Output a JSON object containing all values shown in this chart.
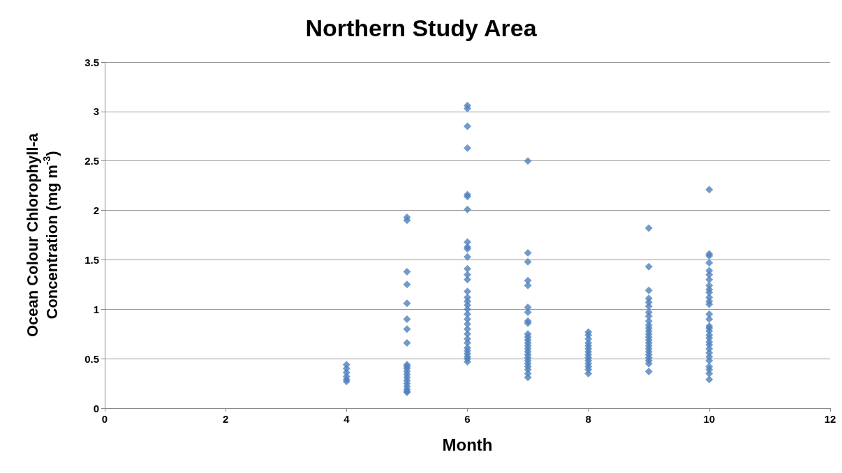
{
  "chart_data": {
    "type": "scatter",
    "title": "Northern Study Area",
    "xlabel": "Month",
    "ylabel": "Ocean Colour Chlorophyll-a Concentration (mg m$^{-3}$)",
    "xlim": [
      0,
      12
    ],
    "xticks": [
      0,
      2,
      4,
      6,
      8,
      10,
      12
    ],
    "ylim": [
      0,
      3.5
    ],
    "yticks": [
      0,
      0.5,
      1,
      1.5,
      2,
      2.5,
      3,
      3.5
    ],
    "grid": "y",
    "marker": "diamond",
    "series": [
      {
        "color": "#4f81bd",
        "x": [
          4,
          4,
          4,
          4,
          4,
          4,
          5,
          5,
          5,
          5,
          5,
          5,
          5,
          5,
          5,
          5,
          5,
          5,
          5,
          5,
          5,
          5,
          5,
          5,
          5,
          5,
          6,
          6,
          6,
          6,
          6,
          6,
          6,
          6,
          6,
          6,
          6,
          6,
          6,
          6,
          6,
          6,
          6,
          6,
          6,
          6,
          6,
          6,
          6,
          6,
          6,
          6,
          6,
          6,
          6,
          6,
          6,
          6,
          7,
          7,
          7,
          7,
          7,
          7,
          7,
          7,
          7,
          7,
          7,
          7,
          7,
          7,
          7,
          7,
          7,
          7,
          7,
          7,
          7,
          7,
          7,
          7,
          8,
          8,
          8,
          8,
          8,
          8,
          8,
          8,
          8,
          8,
          8,
          8,
          8,
          8,
          9,
          9,
          9,
          9,
          9,
          9,
          9,
          9,
          9,
          9,
          9,
          9,
          9,
          9,
          9,
          9,
          9,
          9,
          9,
          9,
          9,
          9,
          9,
          9,
          10,
          10,
          10,
          10,
          10,
          10,
          10,
          10,
          10,
          10,
          10,
          10,
          10,
          10,
          10,
          10,
          10,
          10,
          10,
          10,
          10,
          10,
          10,
          10,
          10,
          10,
          10,
          10,
          10,
          10
        ],
        "values": [
          0.44,
          0.4,
          0.36,
          0.32,
          0.29,
          0.27,
          1.93,
          1.9,
          1.38,
          1.25,
          1.06,
          0.9,
          0.8,
          0.66,
          0.44,
          0.42,
          0.4,
          0.37,
          0.34,
          0.31,
          0.28,
          0.25,
          0.22,
          0.19,
          0.17,
          0.16,
          3.06,
          3.03,
          2.85,
          2.63,
          2.16,
          2.14,
          2.01,
          1.68,
          1.63,
          1.61,
          1.53,
          1.41,
          1.35,
          1.3,
          1.18,
          1.12,
          1.08,
          1.04,
          1.0,
          0.95,
          0.9,
          0.85,
          0.8,
          0.75,
          0.7,
          0.66,
          0.61,
          0.58,
          0.55,
          0.52,
          0.5,
          0.47,
          2.5,
          1.57,
          1.48,
          1.29,
          1.24,
          1.02,
          0.97,
          0.88,
          0.86,
          0.75,
          0.72,
          0.69,
          0.66,
          0.63,
          0.6,
          0.57,
          0.54,
          0.51,
          0.48,
          0.45,
          0.42,
          0.39,
          0.35,
          0.31,
          0.77,
          0.74,
          0.7,
          0.66,
          0.63,
          0.6,
          0.57,
          0.54,
          0.51,
          0.48,
          0.45,
          0.42,
          0.39,
          0.35,
          1.82,
          1.43,
          1.19,
          1.11,
          1.07,
          1.03,
          0.97,
          0.93,
          0.88,
          0.84,
          0.81,
          0.78,
          0.75,
          0.72,
          0.69,
          0.66,
          0.63,
          0.6,
          0.57,
          0.54,
          0.51,
          0.48,
          0.45,
          0.37,
          2.21,
          1.56,
          1.54,
          1.47,
          1.39,
          1.35,
          1.3,
          1.24,
          1.2,
          1.17,
          1.12,
          1.08,
          1.05,
          0.95,
          0.9,
          0.83,
          0.81,
          0.78,
          0.74,
          0.71,
          0.67,
          0.64,
          0.6,
          0.56,
          0.52,
          0.48,
          0.42,
          0.39,
          0.35,
          0.29
        ]
      }
    ]
  }
}
